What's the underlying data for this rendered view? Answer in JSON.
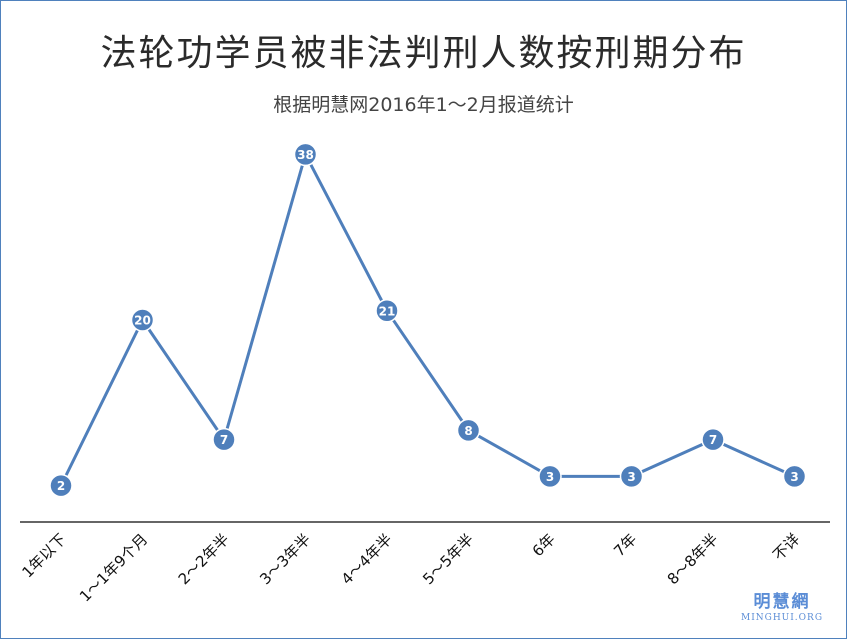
{
  "chart_data": {
    "type": "line",
    "title": "法轮功学员被非法判刑人数按刑期分布",
    "subtitle": "根据明慧网2016年1～2月报道统计",
    "categories": [
      "1年以下",
      "1～1年9个月",
      "2～2年半",
      "3～3年半",
      "4～4年半",
      "5～5年半",
      "6年",
      "7年",
      "8～8年半",
      "不详"
    ],
    "values": [
      2,
      20,
      7,
      38,
      21,
      8,
      3,
      3,
      7,
      3
    ],
    "ylim": [
      0,
      40
    ],
    "grid": false,
    "legend": "none",
    "colors": {
      "line": "#4f7fbb",
      "marker": "#4f7fbb",
      "label": "#ffffff",
      "axis": "#333333"
    }
  },
  "watermark": {
    "main": "明慧網",
    "sub": "MINGHUI.ORG"
  }
}
